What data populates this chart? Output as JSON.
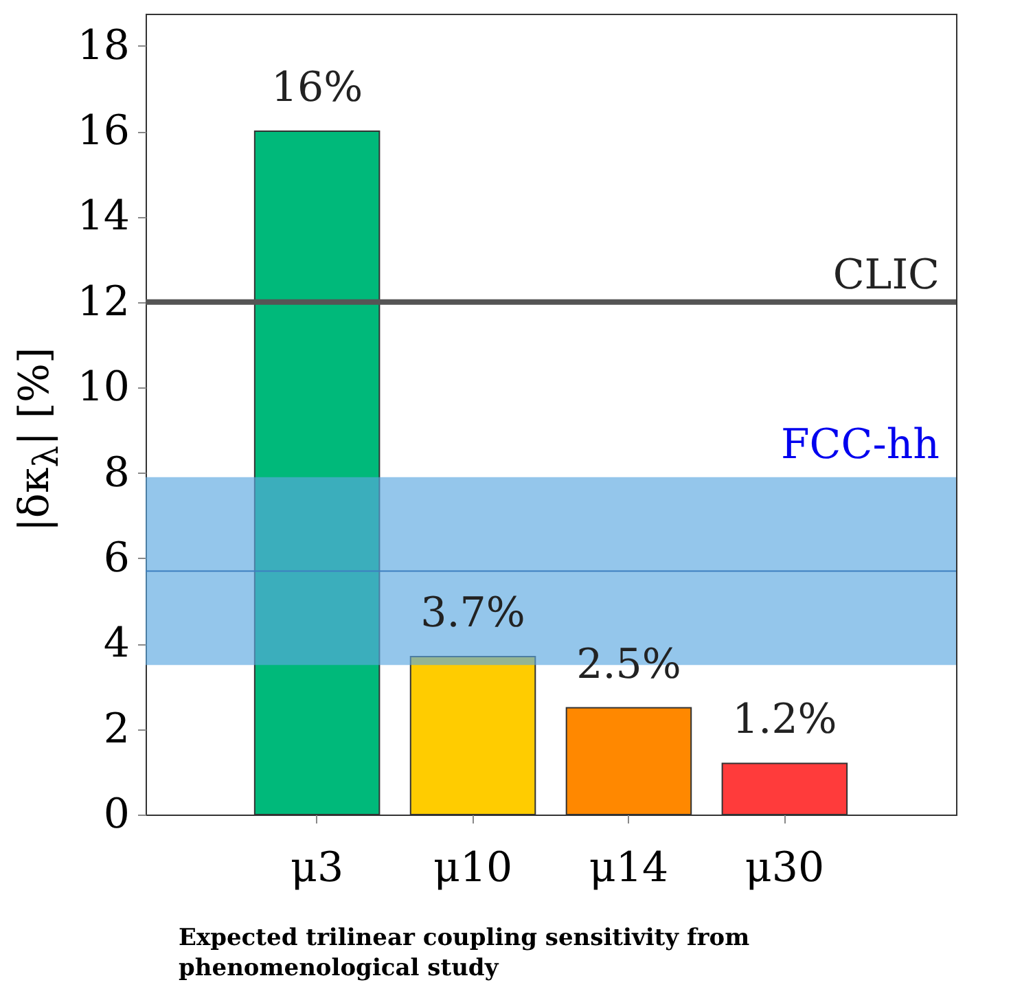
{
  "chart_data": {
    "type": "bar",
    "ylabel": "|δκ$_{λ}$| [%]",
    "categories": [
      "μ3",
      "μ10",
      "μ14",
      "μ30"
    ],
    "values": [
      16,
      3.7,
      2.5,
      1.2
    ],
    "colors": [
      "#00b97a",
      "#ffcc00",
      "#ff8800",
      "#ff3b3b"
    ],
    "value_labels": [
      "16%",
      "3.7%",
      "2.5%",
      "1.2%"
    ],
    "ylim": [
      0,
      18.75
    ],
    "yticks": [
      0,
      2,
      4,
      6,
      8,
      10,
      12,
      14,
      16,
      18
    ],
    "grid": false,
    "ref_lines": [
      {
        "axis": "y",
        "value": 12,
        "label": "CLIC",
        "color": "#555555"
      },
      {
        "axis": "y",
        "value": 5.7,
        "label": null,
        "color": "#3d7fc0"
      }
    ],
    "bands": [
      {
        "axis": "y",
        "from": 3.5,
        "to": 7.9,
        "label": "FCC-hh",
        "color": "#5aa8e0"
      }
    ],
    "annotations": [
      "Expected trilinear coupling sensitivity from phenomenological study"
    ]
  }
}
